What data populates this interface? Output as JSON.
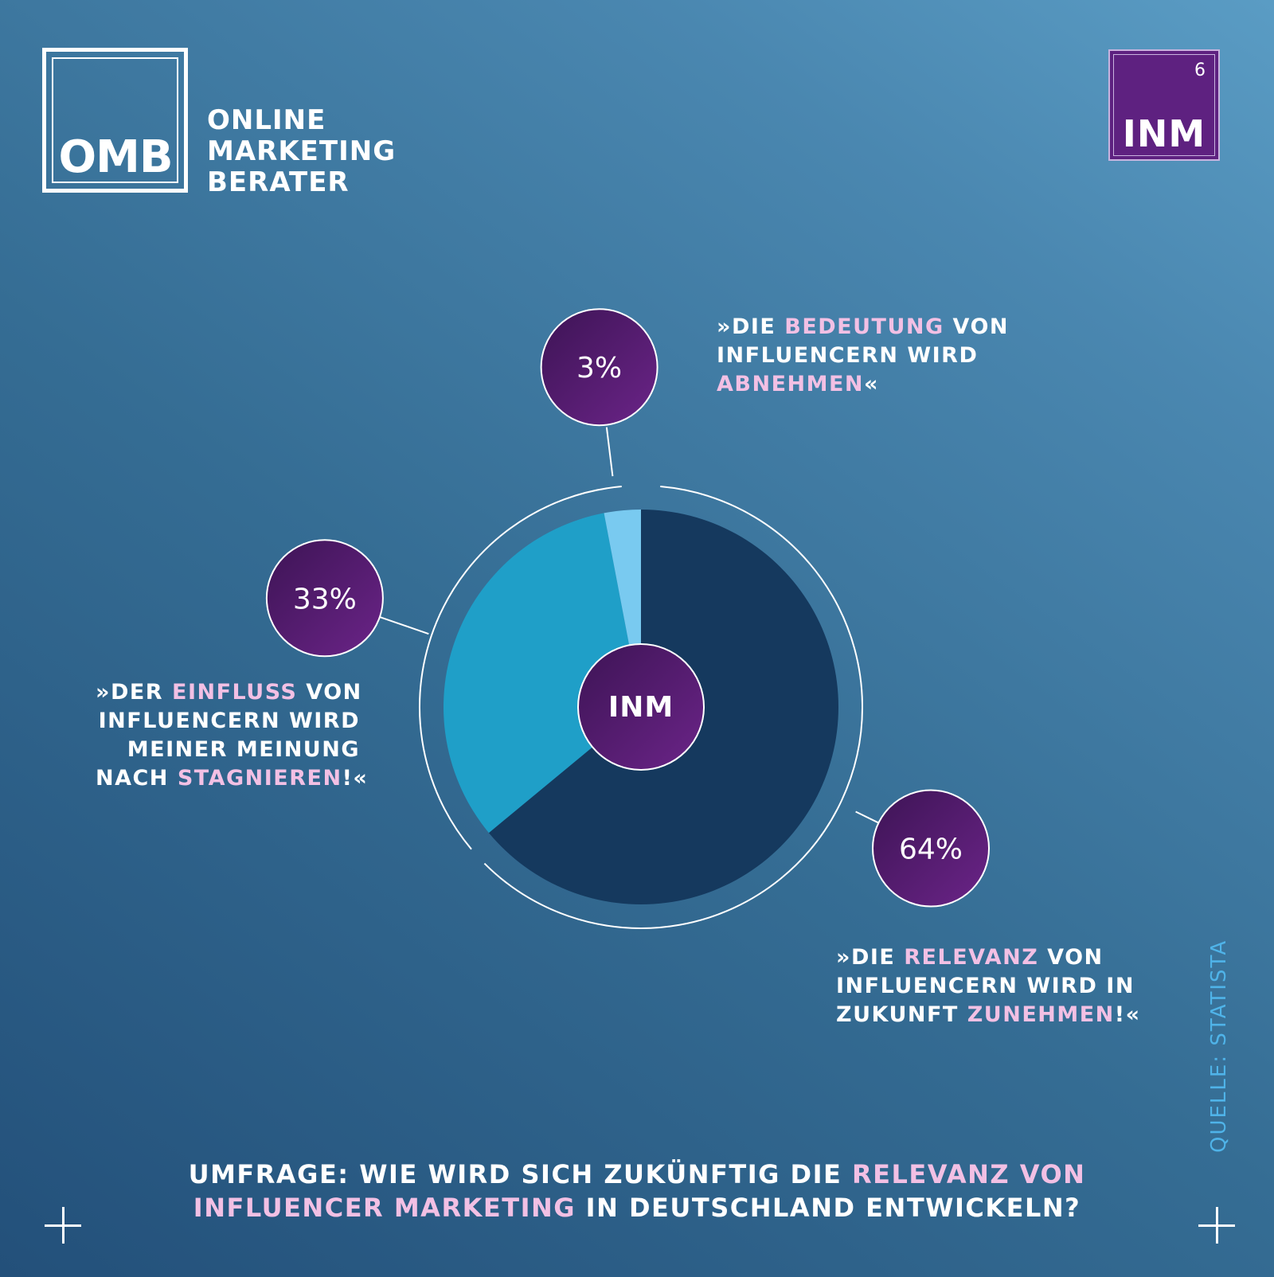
{
  "brand": {
    "omb_logo_text": "OMB",
    "omb_name_lines": [
      "ONLINE",
      "MARKETING",
      "BERATER"
    ],
    "inm_badge_number": "6",
    "inm_badge_label": "INM"
  },
  "chart_data": {
    "type": "pie",
    "center_label": "INM",
    "slices": [
      {
        "value": 64,
        "label": "64%",
        "color": "#15395e",
        "quote": [
          [
            {
              "t": "»DIE "
            },
            {
              "t": "RELEVANZ",
              "hl": true
            },
            {
              "t": " VON"
            }
          ],
          [
            {
              "t": "INFLUENCERN WIRD IN"
            }
          ],
          [
            {
              "t": "ZUKUNFT "
            },
            {
              "t": "ZUNEHMEN",
              "hl": true
            },
            {
              "t": "!«"
            }
          ]
        ]
      },
      {
        "value": 33,
        "label": "33%",
        "color": "#1f9fc8",
        "quote": [
          [
            {
              "t": "»DER "
            },
            {
              "t": "EINFLUSS",
              "hl": true
            },
            {
              "t": " VON"
            }
          ],
          [
            {
              "t": "INFLUENCERN WIRD"
            }
          ],
          [
            {
              "t": "MEINER MEINUNG"
            }
          ],
          [
            {
              "t": "NACH "
            },
            {
              "t": "STAGNIEREN",
              "hl": true
            },
            {
              "t": "!«"
            }
          ]
        ]
      },
      {
        "value": 3,
        "label": "3%",
        "color": "#79caf0",
        "quote": [
          [
            {
              "t": "»DIE "
            },
            {
              "t": "BEDEUTUNG",
              "hl": true
            },
            {
              "t": " VON"
            }
          ],
          [
            {
              "t": "INFLUENCERN WIRD"
            }
          ],
          [
            {
              "t": "ABNEHMEN",
              "hl": true
            },
            {
              "t": "«"
            }
          ]
        ]
      }
    ],
    "title_lines": [
      [
        {
          "t": "UMFRAGE: WIE WIRD SICH ZUKÜNFTIG DIE "
        },
        {
          "t": "RELEVANZ VON",
          "hl": true
        }
      ],
      [
        {
          "t": "INFLUENCER MARKETING",
          "hl": true
        },
        {
          "t": " IN DEUTSCHLAND ENTWICKELN?"
        }
      ]
    ],
    "source": "QUELLE: STATISTA"
  },
  "colors": {
    "bubble_gradient_start": "#3d1455",
    "bubble_gradient_end": "#6b2488",
    "highlight": "#f2c0e4",
    "source_text": "#4fb3e8"
  }
}
